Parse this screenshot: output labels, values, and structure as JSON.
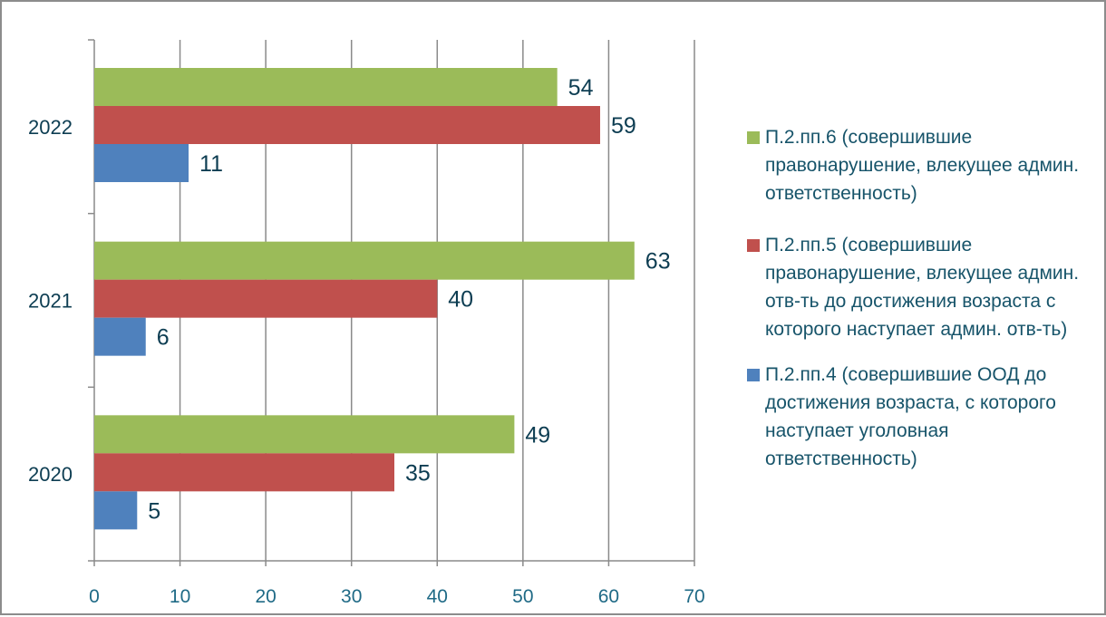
{
  "chart_data": {
    "type": "bar",
    "orientation": "horizontal",
    "categories": [
      "2020",
      "2021",
      "2022"
    ],
    "series": [
      {
        "name": "П.2.пп.6 (совершившие правонарушение, влекущее админ. ответственность)",
        "color": "#9bbb59",
        "values": [
          49,
          63,
          54
        ]
      },
      {
        "name": "П.2.пп.5 (совершившие правонарушение, влекущее админ. отв-ть до достижения возраста с которого наступает админ. отв-ть)",
        "color": "#c0504d",
        "values": [
          35,
          40,
          59
        ]
      },
      {
        "name": "П.2.пп.4 (совершившие ООД до достижения возраста, с которого наступает уголовная ответственность)",
        "color": "#4f81bd",
        "values": [
          5,
          6,
          11
        ]
      }
    ],
    "xlim": [
      0,
      70
    ],
    "x_ticks": [
      0,
      10,
      20,
      30,
      40,
      50,
      60,
      70
    ],
    "grid": true,
    "data_labels": true,
    "legend_position": "right",
    "title": "",
    "xlabel": "",
    "ylabel": ""
  },
  "legend": [
    {
      "label": "П.2.пп.6 (совершившие правонарушение, влекущее админ. ответственность)",
      "color": "#9bbb59"
    },
    {
      "label": "П.2.пп.5 (совершившие правонарушение, влекущее админ. отв-ть до достижения возраста с которого наступает админ. отв-ть)",
      "color": "#c0504d"
    },
    {
      "label": "П.2.пп.4 (совершившие ООД до достижения возраста, с которого наступает уголовная ответственность)",
      "color": "#4f81bd"
    }
  ]
}
